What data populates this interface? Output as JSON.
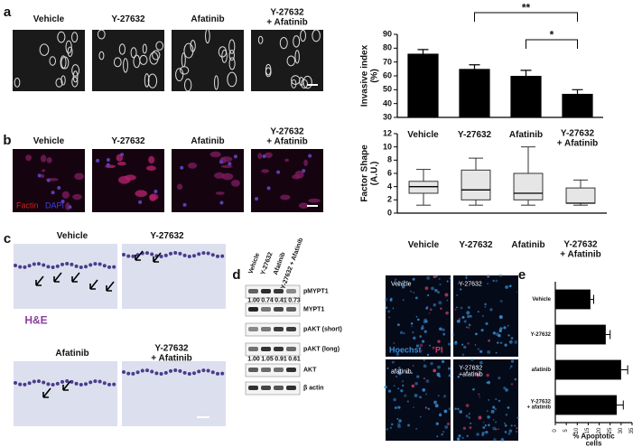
{
  "panel_labels": [
    "a",
    "b",
    "c",
    "d",
    "e"
  ],
  "panel_a_images": [
    "Vehicle",
    "Y-27632",
    "Afatinib",
    "Y-27632\n+ Afatinib"
  ],
  "panel_b_images": [
    "Vehicle",
    "Y-27632",
    "Afatinib",
    "Y-27632\n+ Afatinib"
  ],
  "panel_b_stains": [
    "Factin",
    "DAPI"
  ],
  "panel_c_images": [
    "Vehicle",
    "Y-27632",
    "Afatinib",
    "Y-27632\n+ Afatinib"
  ],
  "panel_c_stain": "H&E",
  "blot": {
    "columns": [
      "Vehicle",
      "Y-27632",
      "Afatinib",
      "Y-27632 + Afatinib"
    ],
    "rows": [
      "pMYPT1",
      "MYPT1",
      "pAKT (short)",
      "pAKT (long)",
      "AKT",
      "β actin"
    ],
    "quant": [
      [
        "1.00",
        "0.74",
        "0.41",
        "0.73"
      ],
      [
        "1.00",
        "1.05",
        "0.91",
        "0.61"
      ]
    ]
  },
  "panel_e_images": [
    "Vehicle",
    "Y-27632",
    "afatinib",
    "Y-27632\n+afatinib"
  ],
  "panel_e_stains": [
    "Hoechst",
    "PI"
  ],
  "chart_data": [
    {
      "type": "bar",
      "y_label": "Invasive index\n(%)",
      "categories": [
        "Vehicle",
        "Y-27632",
        "Afatinib",
        "Y-27632\n+ Afatinib"
      ],
      "values": [
        76,
        65,
        60,
        47
      ],
      "errors": [
        3,
        3,
        4,
        3
      ],
      "color": "#000000",
      "ylim": [
        30,
        90
      ],
      "yticks": [
        30,
        40,
        50,
        60,
        70,
        80,
        90
      ],
      "annotations": [
        "**",
        "*"
      ]
    },
    {
      "type": "box",
      "y_label": "Factor Shape\n(A.U.)",
      "categories": [
        "Vehicle",
        "Y-27632",
        "Afatinib",
        "Y-27632\n+ Afatinib"
      ],
      "min": [
        1.2,
        1.2,
        1.2,
        1.2
      ],
      "q1": [
        3,
        2,
        2,
        1.5
      ],
      "median": [
        4,
        3.5,
        3,
        1.5
      ],
      "q3": [
        4.8,
        6.5,
        6,
        3.8
      ],
      "max": [
        6.6,
        8.3,
        10,
        5
      ],
      "color": "#e6e6e6",
      "ylim": [
        0,
        12
      ],
      "yticks": [
        0,
        2,
        4,
        6,
        8,
        10,
        12
      ]
    },
    {
      "type": "barh",
      "x_label": "% Apoptotic cells",
      "categories": [
        "Vehicle",
        "Y-27632",
        "afatinib",
        "Y-27632\n+ afatinib"
      ],
      "values": [
        16,
        23,
        30,
        28
      ],
      "errors": [
        1.5,
        2,
        3,
        3
      ],
      "color": "#000000",
      "xlim": [
        0,
        35
      ],
      "xticks": [
        0,
        5,
        10,
        15,
        20,
        25,
        30,
        35
      ]
    }
  ]
}
